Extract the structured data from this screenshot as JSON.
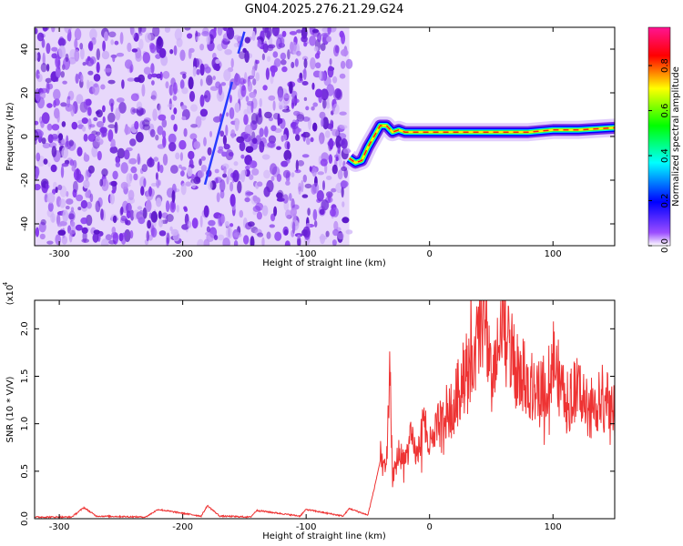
{
  "title": "GN04.2025.276.21.29.G24",
  "chart_data": [
    {
      "type": "heatmap",
      "xlabel": "Height of straight line (km)",
      "ylabel": "Frequency (Hz)",
      "xlim": [
        -320,
        150
      ],
      "ylim": [
        -50,
        50
      ],
      "xticks": [
        -300,
        -200,
        -100,
        0,
        100
      ],
      "yticks": [
        -40,
        -20,
        0,
        20,
        40
      ],
      "colorbar": {
        "label": "Normalized spectral amplitude",
        "ticks": [
          0.0,
          0.2,
          0.4,
          0.6,
          0.8
        ],
        "range": [
          0,
          0.97
        ],
        "colormap": [
          "#ffffff",
          "#8a2be2",
          "#0000ff",
          "#00ffff",
          "#00ff00",
          "#ffff00",
          "#ff0000",
          "#ff1493"
        ]
      },
      "noise_region_x": [
        -320,
        -65
      ],
      "signal_track": {
        "x": [
          -65,
          -60,
          -55,
          -50,
          -45,
          -40,
          -35,
          -30,
          -25,
          -20,
          0,
          20,
          40,
          60,
          80,
          100,
          120,
          150
        ],
        "frequency": [
          -10,
          -12,
          -11,
          -5,
          0,
          5,
          5,
          2,
          3,
          2,
          2,
          2,
          2,
          2,
          2,
          3,
          3,
          4
        ]
      }
    },
    {
      "type": "line",
      "xlabel": "Height of straight line (km)",
      "ylabel": "SNR (10 * V/V)",
      "y_multiplier": "(x10",
      "y_multiplier_exp": "4",
      "xlim": [
        -320,
        150
      ],
      "ylim": [
        0,
        2.3
      ],
      "xticks": [
        -300,
        -200,
        -100,
        0,
        100
      ],
      "yticks": [
        "0.0",
        "0.5",
        "1.0",
        "1.5",
        "2.0"
      ],
      "series": [
        {
          "color": "#ee3333",
          "x": [
            -320,
            -290,
            -280,
            -270,
            -230,
            -220,
            -185,
            -180,
            -170,
            -145,
            -140,
            -105,
            -100,
            -70,
            -65,
            -50,
            -45,
            -40,
            -35,
            -32,
            -30,
            -25,
            -20,
            -15,
            -10,
            -5,
            0,
            10,
            20,
            30,
            40,
            45,
            50,
            60,
            70,
            80,
            90,
            100,
            110,
            120,
            130,
            140,
            150
          ],
          "y": [
            0.01,
            0.01,
            0.11,
            0.02,
            0.01,
            0.09,
            0.02,
            0.13,
            0.02,
            0.01,
            0.08,
            0.02,
            0.09,
            0.02,
            0.1,
            0.03,
            0.3,
            0.6,
            0.5,
            1.55,
            0.4,
            0.7,
            0.6,
            0.85,
            0.65,
            1.0,
            0.75,
            1.05,
            1.2,
            1.6,
            1.85,
            2.3,
            1.35,
            2.0,
            1.55,
            1.45,
            1.3,
            1.7,
            1.2,
            1.35,
            1.15,
            1.3,
            1.1
          ]
        }
      ]
    }
  ]
}
